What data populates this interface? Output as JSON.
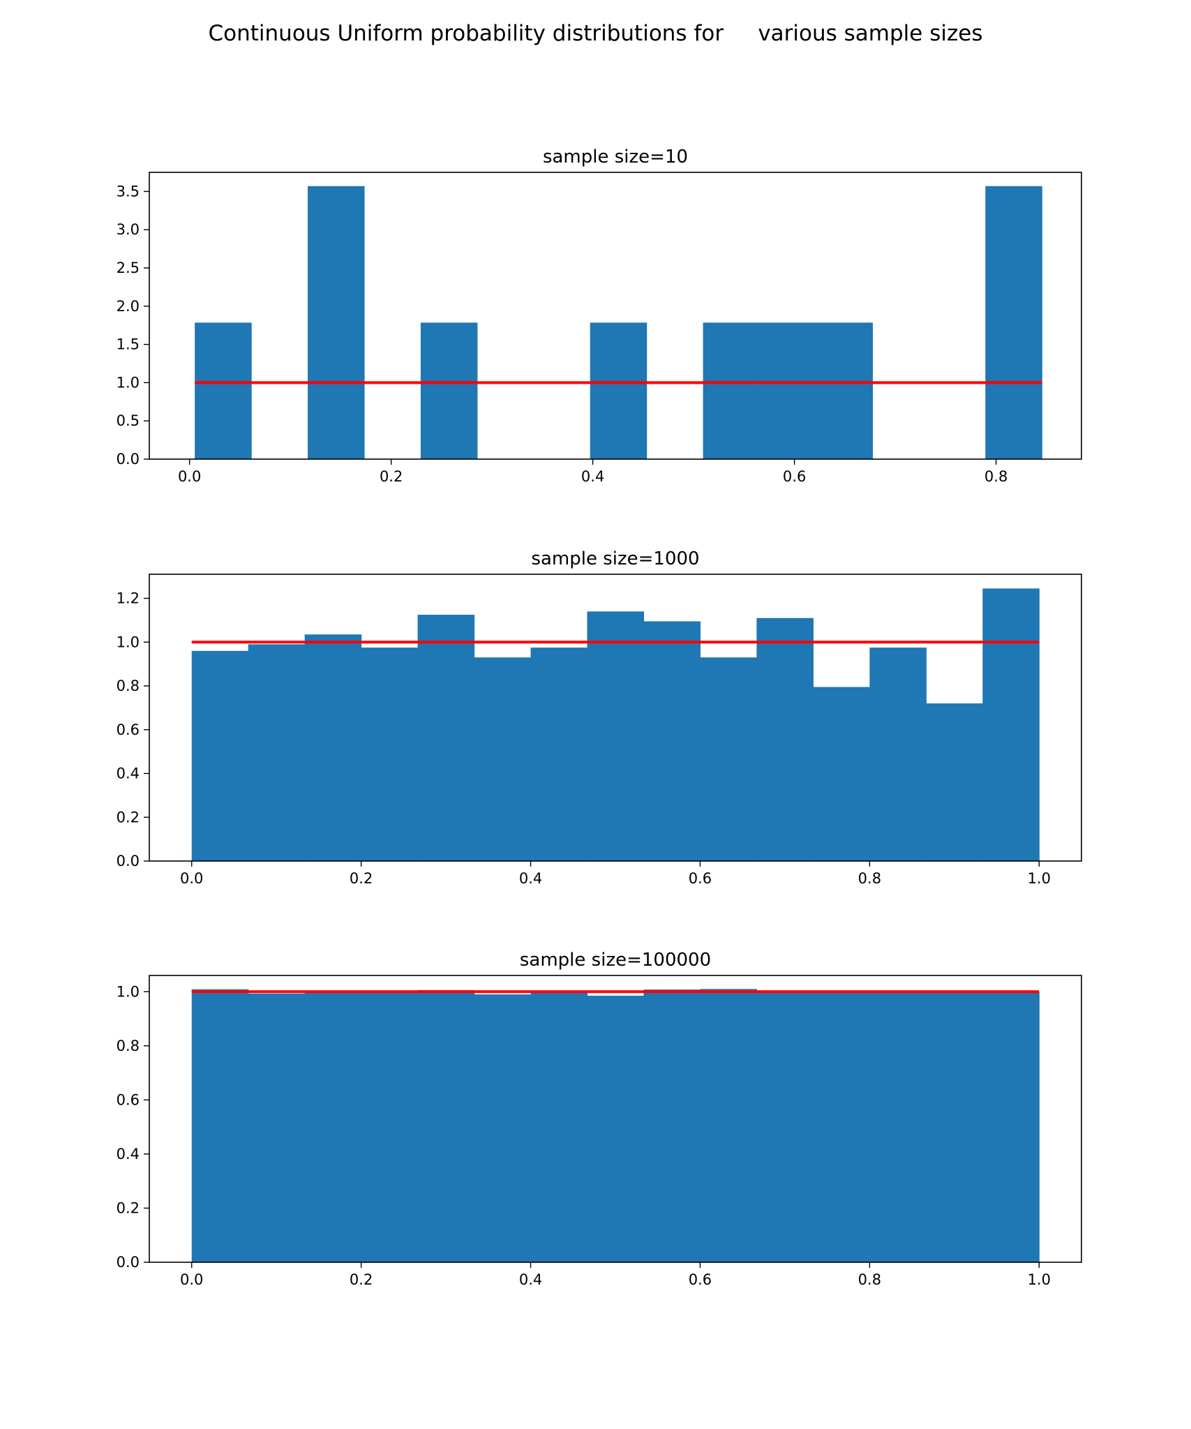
{
  "suptitle": "Continuous Uniform probability distributions for     various sample sizes",
  "colors": {
    "bar": "#1f77b4",
    "pdf_line": "#ff0000",
    "axis": "#000000",
    "background": "#ffffff"
  },
  "chart_data": [
    {
      "type": "bar",
      "title": "sample size=10",
      "xlabel": "",
      "ylabel": "",
      "xlim": [
        -0.0399,
        0.8847
      ],
      "ylim": [
        0,
        3.75
      ],
      "xticks": [
        0.0,
        0.2,
        0.4,
        0.6,
        0.8
      ],
      "xtick_labels": [
        "0.0",
        "0.2",
        "0.4",
        "0.6",
        "0.8"
      ],
      "yticks": [
        0.0,
        0.5,
        1.0,
        1.5,
        2.0,
        2.5,
        3.0,
        3.5
      ],
      "ytick_labels": [
        "0.0",
        "0.5",
        "1.0",
        "1.5",
        "2.0",
        "2.5",
        "3.0",
        "3.5"
      ],
      "bin_start": 0.0052,
      "bin_end": 0.8454,
      "values": [
        1.785,
        0,
        3.57,
        0,
        1.785,
        0,
        0,
        1.785,
        0,
        1.785,
        1.785,
        1.785,
        0,
        0,
        3.57
      ],
      "pdf_line": {
        "x": [
          0.0052,
          0.8454
        ],
        "y": [
          1.0,
          1.0
        ]
      }
    },
    {
      "type": "bar",
      "title": "sample size=1000",
      "xlabel": "",
      "ylabel": "",
      "xlim": [
        -0.05,
        1.05
      ],
      "ylim": [
        0,
        1.31
      ],
      "xticks": [
        0.0,
        0.2,
        0.4,
        0.6,
        0.8,
        1.0
      ],
      "xtick_labels": [
        "0.0",
        "0.2",
        "0.4",
        "0.6",
        "0.8",
        "1.0"
      ],
      "yticks": [
        0.0,
        0.2,
        0.4,
        0.6,
        0.8,
        1.0,
        1.2
      ],
      "ytick_labels": [
        "0.0",
        "0.2",
        "0.4",
        "0.6",
        "0.8",
        "1.0",
        "1.2"
      ],
      "bin_start": 0.0,
      "bin_end": 1.0,
      "values": [
        0.96,
        0.99,
        1.035,
        0.975,
        1.125,
        0.93,
        0.975,
        1.14,
        1.095,
        0.93,
        1.11,
        0.795,
        0.975,
        0.72,
        1.245
      ],
      "pdf_line": {
        "x": [
          0.0,
          1.0
        ],
        "y": [
          1.0,
          1.0
        ]
      }
    },
    {
      "type": "bar",
      "title": "sample size=100000",
      "xlabel": "",
      "ylabel": "",
      "xlim": [
        -0.05,
        1.05
      ],
      "ylim": [
        0,
        1.06
      ],
      "xticks": [
        0.0,
        0.2,
        0.4,
        0.6,
        0.8,
        1.0
      ],
      "xtick_labels": [
        "0.0",
        "0.2",
        "0.4",
        "0.6",
        "0.8",
        "1.0"
      ],
      "yticks": [
        0.0,
        0.2,
        0.4,
        0.6,
        0.8,
        1.0
      ],
      "ytick_labels": [
        "0.0",
        "0.2",
        "0.4",
        "0.6",
        "0.8",
        "1.0"
      ],
      "bin_start": 0.0,
      "bin_end": 1.0,
      "values": [
        1.009,
        0.993,
        1.0,
        0.998,
        1.006,
        0.99,
        1.004,
        0.985,
        1.008,
        1.01,
        1.0,
        1.002,
        0.998,
        1.0,
        0.999
      ],
      "pdf_line": {
        "x": [
          0.0,
          1.0
        ],
        "y": [
          1.0,
          1.0
        ]
      }
    }
  ]
}
